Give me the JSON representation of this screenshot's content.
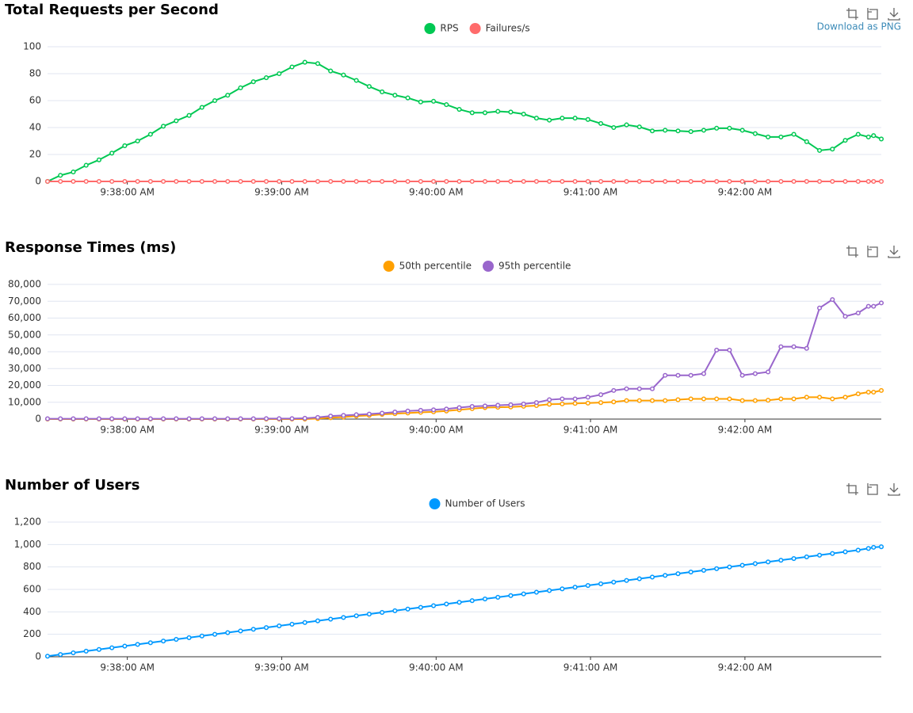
{
  "tooltip": "Download as PNG",
  "chart_data": [
    {
      "type": "line",
      "title": "Total Requests per Second",
      "legend": "top",
      "x": [
        "9:37:29 AM",
        "9:37:34 AM",
        "9:37:39 AM",
        "9:37:44 AM",
        "9:37:49 AM",
        "9:37:54 AM",
        "9:37:59 AM",
        "9:38:04 AM",
        "9:38:09 AM",
        "9:38:14 AM",
        "9:38:19 AM",
        "9:38:24 AM",
        "9:38:29 AM",
        "9:38:34 AM",
        "9:38:39 AM",
        "9:38:44 AM",
        "9:38:49 AM",
        "9:38:54 AM",
        "9:38:59 AM",
        "9:39:04 AM",
        "9:39:09 AM",
        "9:39:14 AM",
        "9:39:19 AM",
        "9:39:24 AM",
        "9:39:29 AM",
        "9:39:34 AM",
        "9:39:39 AM",
        "9:39:44 AM",
        "9:39:49 AM",
        "9:39:54 AM",
        "9:39:59 AM",
        "9:40:04 AM",
        "9:40:09 AM",
        "9:40:14 AM",
        "9:40:19 AM",
        "9:40:24 AM",
        "9:40:29 AM",
        "9:40:34 AM",
        "9:40:39 AM",
        "9:40:44 AM",
        "9:40:49 AM",
        "9:40:54 AM",
        "9:40:59 AM",
        "9:41:04 AM",
        "9:41:09 AM",
        "9:41:14 AM",
        "9:41:19 AM",
        "9:41:24 AM",
        "9:41:29 AM",
        "9:41:34 AM",
        "9:41:39 AM",
        "9:41:44 AM",
        "9:41:49 AM",
        "9:41:54 AM",
        "9:41:59 AM",
        "9:42:04 AM",
        "9:42:09 AM",
        "9:42:14 AM",
        "9:42:19 AM",
        "9:42:24 AM",
        "9:42:29 AM",
        "9:42:34 AM",
        "9:42:39 AM",
        "9:42:44 AM",
        "9:42:48 AM",
        "9:42:50 AM",
        "9:42:53 AM"
      ],
      "xlim": [
        "9:37:29 AM",
        "9:42:53 AM"
      ],
      "xticks": [
        "9:38:00 AM",
        "9:39:00 AM",
        "9:40:00 AM",
        "9:41:00 AM",
        "9:42:00 AM"
      ],
      "ylim": [
        0,
        100
      ],
      "yticks": [
        0,
        20,
        40,
        60,
        80,
        100
      ],
      "grid": true,
      "series": [
        {
          "name": "RPS",
          "color": "#00c853",
          "values": [
            0,
            4.5,
            7,
            12,
            16,
            21,
            26.5,
            30,
            35,
            41,
            45,
            49,
            55,
            60,
            64,
            69.5,
            74,
            77,
            80,
            85,
            88.5,
            87.5,
            82,
            79,
            75,
            70.5,
            66.5,
            64,
            62,
            59,
            59.5,
            57,
            53.5,
            51,
            51,
            52,
            51.5,
            50,
            47,
            45.5,
            47,
            47,
            46,
            43,
            40,
            42,
            40.5,
            37.5,
            38,
            37.5,
            37,
            38,
            39.5,
            39.5,
            38,
            35.5,
            33,
            33,
            35,
            29.5,
            23,
            24,
            30.5,
            35,
            33,
            34,
            31.5
          ]
        },
        {
          "name": "Failures/s",
          "color": "#ff6b6b",
          "values": [
            0,
            0,
            0,
            0,
            0,
            0,
            0,
            0,
            0,
            0,
            0,
            0,
            0,
            0,
            0,
            0,
            0,
            0,
            0,
            0,
            0,
            0,
            0,
            0,
            0,
            0,
            0,
            0,
            0,
            0,
            0,
            0,
            0,
            0,
            0,
            0,
            0,
            0,
            0,
            0,
            0,
            0,
            0,
            0,
            0,
            0,
            0,
            0,
            0,
            0,
            0,
            0,
            0,
            0,
            0,
            0,
            0,
            0,
            0,
            0,
            0,
            0,
            0,
            0,
            0,
            0,
            0
          ]
        }
      ]
    },
    {
      "type": "line",
      "title": "Response Times (ms)",
      "legend": "top",
      "x": [
        "9:37:29 AM",
        "9:37:34 AM",
        "9:37:39 AM",
        "9:37:44 AM",
        "9:37:49 AM",
        "9:37:54 AM",
        "9:37:59 AM",
        "9:38:04 AM",
        "9:38:09 AM",
        "9:38:14 AM",
        "9:38:19 AM",
        "9:38:24 AM",
        "9:38:29 AM",
        "9:38:34 AM",
        "9:38:39 AM",
        "9:38:44 AM",
        "9:38:49 AM",
        "9:38:54 AM",
        "9:38:59 AM",
        "9:39:04 AM",
        "9:39:09 AM",
        "9:39:14 AM",
        "9:39:19 AM",
        "9:39:24 AM",
        "9:39:29 AM",
        "9:39:34 AM",
        "9:39:39 AM",
        "9:39:44 AM",
        "9:39:49 AM",
        "9:39:54 AM",
        "9:39:59 AM",
        "9:40:04 AM",
        "9:40:09 AM",
        "9:40:14 AM",
        "9:40:19 AM",
        "9:40:24 AM",
        "9:40:29 AM",
        "9:40:34 AM",
        "9:40:39 AM",
        "9:40:44 AM",
        "9:40:49 AM",
        "9:40:54 AM",
        "9:40:59 AM",
        "9:41:04 AM",
        "9:41:09 AM",
        "9:41:14 AM",
        "9:41:19 AM",
        "9:41:24 AM",
        "9:41:29 AM",
        "9:41:34 AM",
        "9:41:39 AM",
        "9:41:44 AM",
        "9:41:49 AM",
        "9:41:54 AM",
        "9:41:59 AM",
        "9:42:04 AM",
        "9:42:09 AM",
        "9:42:14 AM",
        "9:42:19 AM",
        "9:42:24 AM",
        "9:42:29 AM",
        "9:42:34 AM",
        "9:42:39 AM",
        "9:42:44 AM",
        "9:42:48 AM",
        "9:42:50 AM",
        "9:42:53 AM"
      ],
      "xlim": [
        "9:37:29 AM",
        "9:42:53 AM"
      ],
      "xticks": [
        "9:38:00 AM",
        "9:39:00 AM",
        "9:40:00 AM",
        "9:41:00 AM",
        "9:42:00 AM"
      ],
      "ylim": [
        0,
        80000
      ],
      "yticks": [
        0,
        {
          "value": 10000,
          "label": "10,000"
        },
        {
          "value": 20000,
          "label": "20,000"
        },
        {
          "value": 30000,
          "label": "30,000"
        },
        {
          "value": 40000,
          "label": "40,000"
        },
        {
          "value": 50000,
          "label": "50,000"
        },
        {
          "value": 60000,
          "label": "60,000"
        },
        {
          "value": 70000,
          "label": "70,000"
        },
        {
          "value": 80000,
          "label": "80,000"
        }
      ],
      "grid": true,
      "series": [
        {
          "name": "50th percentile",
          "color": "#ffa000",
          "values": [
            0,
            0,
            0,
            0,
            0,
            0,
            0,
            0,
            0,
            0,
            0,
            0,
            0,
            0,
            0,
            0,
            0,
            0,
            0,
            0,
            0,
            300,
            800,
            1200,
            1800,
            2200,
            2800,
            3200,
            3600,
            4000,
            4300,
            4800,
            5500,
            6200,
            6800,
            7000,
            7200,
            7600,
            8000,
            8800,
            9000,
            9300,
            9500,
            9800,
            10200,
            11000,
            11000,
            11000,
            11000,
            11500,
            12000,
            12000,
            12000,
            12000,
            11000,
            11000,
            11200,
            12000,
            12000,
            13000,
            13000,
            12000,
            13000,
            15000,
            16000,
            16000,
            17000
          ]
        },
        {
          "name": "95th percentile",
          "color": "#9966cc",
          "values": [
            200,
            200,
            200,
            200,
            200,
            200,
            200,
            200,
            200,
            200,
            200,
            200,
            200,
            200,
            200,
            200,
            200,
            300,
            300,
            300,
            500,
            1000,
            1800,
            2200,
            2600,
            3000,
            3500,
            4200,
            4800,
            5200,
            5500,
            6000,
            6800,
            7500,
            7800,
            8200,
            8500,
            9000,
            9800,
            11500,
            12000,
            12000,
            13000,
            14500,
            17000,
            18000,
            18000,
            18000,
            26000,
            26000,
            26000,
            27000,
            41000,
            41000,
            26000,
            27000,
            28000,
            43000,
            43000,
            42000,
            66000,
            71000,
            61000,
            63000,
            67000,
            67000,
            69000
          ]
        }
      ]
    },
    {
      "type": "line",
      "title": "Number of Users",
      "legend": "top",
      "x": [
        "9:37:29 AM",
        "9:37:34 AM",
        "9:37:39 AM",
        "9:37:44 AM",
        "9:37:49 AM",
        "9:37:54 AM",
        "9:37:59 AM",
        "9:38:04 AM",
        "9:38:09 AM",
        "9:38:14 AM",
        "9:38:19 AM",
        "9:38:24 AM",
        "9:38:29 AM",
        "9:38:34 AM",
        "9:38:39 AM",
        "9:38:44 AM",
        "9:38:49 AM",
        "9:38:54 AM",
        "9:38:59 AM",
        "9:39:04 AM",
        "9:39:09 AM",
        "9:39:14 AM",
        "9:39:19 AM",
        "9:39:24 AM",
        "9:39:29 AM",
        "9:39:34 AM",
        "9:39:39 AM",
        "9:39:44 AM",
        "9:39:49 AM",
        "9:39:54 AM",
        "9:39:59 AM",
        "9:40:04 AM",
        "9:40:09 AM",
        "9:40:14 AM",
        "9:40:19 AM",
        "9:40:24 AM",
        "9:40:29 AM",
        "9:40:34 AM",
        "9:40:39 AM",
        "9:40:44 AM",
        "9:40:49 AM",
        "9:40:54 AM",
        "9:40:59 AM",
        "9:41:04 AM",
        "9:41:09 AM",
        "9:41:14 AM",
        "9:41:19 AM",
        "9:41:24 AM",
        "9:41:29 AM",
        "9:41:34 AM",
        "9:41:39 AM",
        "9:41:44 AM",
        "9:41:49 AM",
        "9:41:54 AM",
        "9:41:59 AM",
        "9:42:04 AM",
        "9:42:09 AM",
        "9:42:14 AM",
        "9:42:19 AM",
        "9:42:24 AM",
        "9:42:29 AM",
        "9:42:34 AM",
        "9:42:39 AM",
        "9:42:44 AM",
        "9:42:48 AM",
        "9:42:50 AM",
        "9:42:53 AM"
      ],
      "xlim": [
        "9:37:29 AM",
        "9:42:53 AM"
      ],
      "xticks": [
        "9:38:00 AM",
        "9:39:00 AM",
        "9:40:00 AM",
        "9:41:00 AM",
        "9:42:00 AM"
      ],
      "ylim": [
        0,
        1200
      ],
      "yticks": [
        0,
        200,
        400,
        600,
        800,
        {
          "value": 1000,
          "label": "1,000"
        },
        {
          "value": 1200,
          "label": "1,200"
        }
      ],
      "grid": true,
      "series": [
        {
          "name": "Number of Users",
          "color": "#0099ff",
          "values": [
            5,
            20,
            35,
            50,
            65,
            80,
            95,
            110,
            125,
            140,
            155,
            170,
            185,
            200,
            215,
            230,
            245,
            260,
            275,
            290,
            305,
            320,
            335,
            350,
            365,
            380,
            395,
            410,
            425,
            440,
            455,
            470,
            485,
            500,
            515,
            530,
            545,
            560,
            575,
            590,
            605,
            620,
            635,
            650,
            665,
            680,
            695,
            710,
            725,
            740,
            755,
            770,
            785,
            800,
            815,
            830,
            845,
            860,
            875,
            890,
            905,
            920,
            935,
            950,
            965,
            975,
            980
          ]
        }
      ]
    }
  ]
}
